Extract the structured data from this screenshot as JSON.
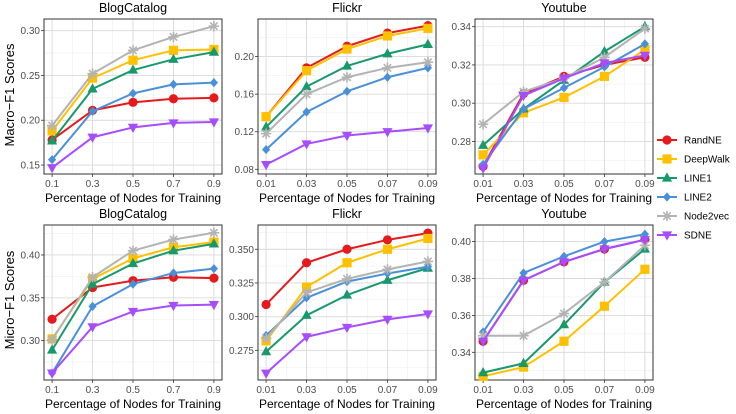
{
  "row_ylabels": [
    "Macro−F1 Scores",
    "Micro−F1 Scores"
  ],
  "legend": [
    {
      "key": "RandNE",
      "label": "RandNE"
    },
    {
      "key": "DeepWalk",
      "label": "DeepWalk"
    },
    {
      "key": "LINE1",
      "label": "LINE1"
    },
    {
      "key": "LINE2",
      "label": "LINE2"
    },
    {
      "key": "Node2vec",
      "label": "Node2vec"
    },
    {
      "key": "SDNE",
      "label": "SDNE"
    }
  ],
  "styles": {
    "RandNE": {
      "color": "#E41A1C",
      "marker": "circle"
    },
    "DeepWalk": {
      "color": "#FFC000",
      "marker": "square"
    },
    "LINE1": {
      "color": "#17996B",
      "marker": "triangle-up"
    },
    "LINE2": {
      "color": "#4A90D9",
      "marker": "diamond"
    },
    "Node2vec": {
      "color": "#B3B3B3",
      "marker": "asterisk"
    },
    "SDNE": {
      "color": "#A64DFF",
      "marker": "triangle-down"
    }
  },
  "chart_data": [
    {
      "type": "line",
      "title": "BlogCatalog",
      "xlabel": "Percentage of Nodes for Training",
      "ylabel": "Macro−F1 Scores",
      "x": [
        0.1,
        0.3,
        0.5,
        0.7,
        0.9
      ],
      "xticks": [
        "0.1",
        "0.3",
        "0.5",
        "0.7",
        "0.9"
      ],
      "ylim": [
        0.14,
        0.313
      ],
      "yticks": [
        0.15,
        0.2,
        0.25,
        0.3
      ],
      "ytick_labels": [
        "0.15",
        "0.20",
        "0.25",
        "0.30"
      ],
      "series": [
        {
          "name": "RandNE",
          "values": [
            0.178,
            0.211,
            0.22,
            0.224,
            0.225
          ]
        },
        {
          "name": "DeepWalk",
          "values": [
            0.188,
            0.247,
            0.267,
            0.278,
            0.279
          ]
        },
        {
          "name": "LINE1",
          "values": [
            0.177,
            0.235,
            0.256,
            0.268,
            0.276
          ]
        },
        {
          "name": "LINE2",
          "values": [
            0.156,
            0.21,
            0.23,
            0.24,
            0.242
          ]
        },
        {
          "name": "Node2vec",
          "values": [
            0.194,
            0.252,
            0.278,
            0.293,
            0.305
          ]
        },
        {
          "name": "SDNE",
          "values": [
            0.147,
            0.181,
            0.192,
            0.197,
            0.198
          ]
        }
      ]
    },
    {
      "type": "line",
      "title": "Flickr",
      "xlabel": "Percentage of Nodes for Training",
      "ylabel": "Macro−F1 Scores",
      "x": [
        0.01,
        0.03,
        0.05,
        0.07,
        0.09
      ],
      "xticks": [
        "0.01",
        "0.03",
        "0.05",
        "0.07",
        "0.09"
      ],
      "ylim": [
        0.075,
        0.24
      ],
      "yticks": [
        0.08,
        0.12,
        0.16,
        0.2
      ],
      "ytick_labels": [
        "0.08",
        "0.12",
        "0.16",
        "0.20"
      ],
      "series": [
        {
          "name": "RandNE",
          "values": [
            0.136,
            0.188,
            0.211,
            0.225,
            0.233
          ]
        },
        {
          "name": "DeepWalk",
          "values": [
            0.136,
            0.185,
            0.208,
            0.222,
            0.23
          ]
        },
        {
          "name": "LINE1",
          "values": [
            0.125,
            0.168,
            0.19,
            0.203,
            0.213
          ]
        },
        {
          "name": "LINE2",
          "values": [
            0.101,
            0.141,
            0.163,
            0.178,
            0.188
          ]
        },
        {
          "name": "Node2vec",
          "values": [
            0.118,
            0.16,
            0.178,
            0.188,
            0.194
          ]
        },
        {
          "name": "SDNE",
          "values": [
            0.085,
            0.107,
            0.116,
            0.12,
            0.124
          ]
        }
      ]
    },
    {
      "type": "line",
      "title": "Youtube",
      "xlabel": "Percentage of Nodes for Training",
      "ylabel": "Macro−F1 Scores",
      "x": [
        0.01,
        0.03,
        0.05,
        0.07,
        0.09
      ],
      "xticks": [
        "0.01",
        "0.03",
        "0.05",
        "0.07",
        "0.09"
      ],
      "ylim": [
        0.263,
        0.344
      ],
      "yticks": [
        0.28,
        0.3,
        0.32,
        0.34
      ],
      "ytick_labels": [
        "0.28",
        "0.30",
        "0.32",
        "0.34"
      ],
      "series": [
        {
          "name": "RandNE",
          "values": [
            0.267,
            0.305,
            0.314,
            0.32,
            0.324
          ]
        },
        {
          "name": "DeepWalk",
          "values": [
            0.273,
            0.295,
            0.303,
            0.314,
            0.328
          ]
        },
        {
          "name": "LINE1",
          "values": [
            0.278,
            0.297,
            0.312,
            0.327,
            0.34
          ]
        },
        {
          "name": "LINE2",
          "values": [
            0.268,
            0.297,
            0.308,
            0.319,
            0.331
          ]
        },
        {
          "name": "Node2vec",
          "values": [
            0.289,
            0.306,
            0.313,
            0.324,
            0.339
          ]
        },
        {
          "name": "SDNE",
          "values": [
            0.266,
            0.304,
            0.313,
            0.321,
            0.325
          ]
        }
      ]
    },
    {
      "type": "line",
      "title": "BlogCatalog",
      "xlabel": "Percentage of Nodes for Training",
      "ylabel": "Micro−F1 Scores",
      "x": [
        0.1,
        0.3,
        0.5,
        0.7,
        0.9
      ],
      "xticks": [
        "0.1",
        "0.3",
        "0.5",
        "0.7",
        "0.9"
      ],
      "ylim": [
        0.254,
        0.435
      ],
      "yticks": [
        0.3,
        0.35,
        0.4
      ],
      "ytick_labels": [
        "0.30",
        "0.35",
        "0.40"
      ],
      "series": [
        {
          "name": "RandNE",
          "values": [
            0.325,
            0.362,
            0.37,
            0.374,
            0.373
          ]
        },
        {
          "name": "DeepWalk",
          "values": [
            0.302,
            0.372,
            0.396,
            0.409,
            0.415
          ]
        },
        {
          "name": "LINE1",
          "values": [
            0.289,
            0.366,
            0.39,
            0.405,
            0.413
          ]
        },
        {
          "name": "LINE2",
          "values": [
            0.262,
            0.34,
            0.366,
            0.379,
            0.384
          ]
        },
        {
          "name": "Node2vec",
          "values": [
            0.301,
            0.374,
            0.405,
            0.418,
            0.426
          ]
        },
        {
          "name": "SDNE",
          "values": [
            0.262,
            0.316,
            0.334,
            0.341,
            0.342
          ]
        }
      ]
    },
    {
      "type": "line",
      "title": "Flickr",
      "xlabel": "Percentage of Nodes for Training",
      "ylabel": "Micro−F1 Scores",
      "x": [
        0.01,
        0.03,
        0.05,
        0.07,
        0.09
      ],
      "xticks": [
        "0.01",
        "0.03",
        "0.05",
        "0.07",
        "0.09"
      ],
      "ylim": [
        0.253,
        0.368
      ],
      "yticks": [
        0.275,
        0.3,
        0.325,
        0.35
      ],
      "ytick_labels": [
        "0.275",
        "0.300",
        "0.325",
        "0.350"
      ],
      "series": [
        {
          "name": "RandNE",
          "values": [
            0.309,
            0.34,
            0.35,
            0.357,
            0.362
          ]
        },
        {
          "name": "DeepWalk",
          "values": [
            0.282,
            0.322,
            0.34,
            0.35,
            0.358
          ]
        },
        {
          "name": "LINE1",
          "values": [
            0.274,
            0.301,
            0.316,
            0.327,
            0.336
          ]
        },
        {
          "name": "LINE2",
          "values": [
            0.286,
            0.314,
            0.326,
            0.332,
            0.337
          ]
        },
        {
          "name": "Node2vec",
          "values": [
            0.284,
            0.318,
            0.328,
            0.335,
            0.341
          ]
        },
        {
          "name": "SDNE",
          "values": [
            0.258,
            0.285,
            0.292,
            0.298,
            0.302
          ]
        }
      ]
    },
    {
      "type": "line",
      "title": "Youtube",
      "xlabel": "Percentage of Nodes for Training",
      "ylabel": "Micro−F1 Scores",
      "x": [
        0.01,
        0.03,
        0.05,
        0.07,
        0.09
      ],
      "xticks": [
        "0.01",
        "0.03",
        "0.05",
        "0.07",
        "0.09"
      ],
      "ylim": [
        0.325,
        0.409
      ],
      "yticks": [
        0.34,
        0.36,
        0.38,
        0.4
      ],
      "ytick_labels": [
        "0.34",
        "0.36",
        "0.38",
        "0.40"
      ],
      "series": [
        {
          "name": "RandNE",
          "values": [
            0.346,
            0.379,
            0.389,
            0.396,
            0.401
          ]
        },
        {
          "name": "DeepWalk",
          "values": [
            0.327,
            0.332,
            0.346,
            0.365,
            0.385
          ]
        },
        {
          "name": "LINE1",
          "values": [
            0.329,
            0.334,
            0.355,
            0.378,
            0.396
          ]
        },
        {
          "name": "LINE2",
          "values": [
            0.351,
            0.383,
            0.392,
            0.4,
            0.404
          ]
        },
        {
          "name": "Node2vec",
          "values": [
            0.349,
            0.349,
            0.361,
            0.378,
            0.398
          ]
        },
        {
          "name": "SDNE",
          "values": [
            0.346,
            0.379,
            0.389,
            0.396,
            0.401
          ]
        }
      ]
    }
  ]
}
